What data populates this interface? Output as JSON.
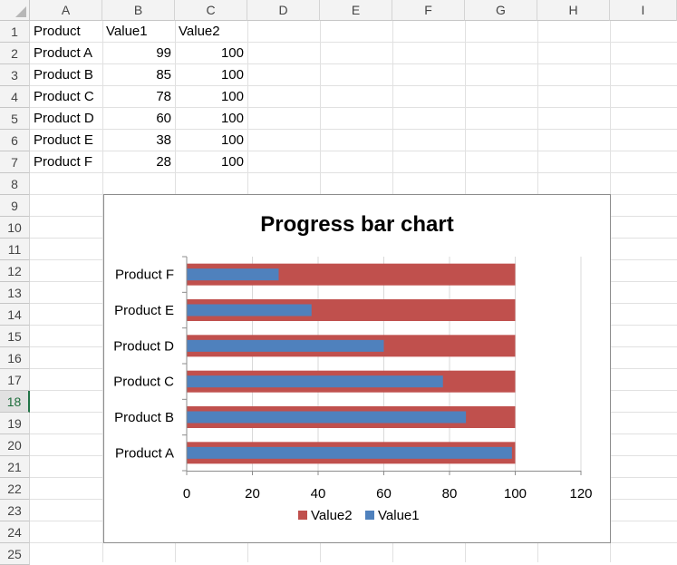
{
  "columns": [
    "A",
    "B",
    "C",
    "D",
    "E",
    "F",
    "G",
    "H",
    "I"
  ],
  "rows": [
    "1",
    "2",
    "3",
    "4",
    "5",
    "6",
    "7",
    "8",
    "9",
    "10",
    "11",
    "12",
    "13",
    "14",
    "15",
    "16",
    "17",
    "18",
    "19",
    "20",
    "21",
    "22",
    "23",
    "24",
    "25"
  ],
  "selected_row": "18",
  "table": {
    "headers": [
      "Product",
      "Value1",
      "Value2"
    ],
    "rows": [
      [
        "Product A",
        99,
        100
      ],
      [
        "Product B",
        85,
        100
      ],
      [
        "Product C",
        78,
        100
      ],
      [
        "Product D",
        60,
        100
      ],
      [
        "Product E",
        38,
        100
      ],
      [
        "Product F",
        28,
        100
      ]
    ]
  },
  "colors": {
    "value1": "#4f81bd",
    "value2": "#c0504d",
    "grid": "#d9d9d9",
    "selected_header": "#217346"
  },
  "chart_data": {
    "type": "bar",
    "orientation": "horizontal",
    "title": "Progress bar chart",
    "categories": [
      "Product A",
      "Product B",
      "Product C",
      "Product D",
      "Product E",
      "Product F"
    ],
    "series": [
      {
        "name": "Value2",
        "values": [
          100,
          100,
          100,
          100,
          100,
          100
        ]
      },
      {
        "name": "Value1",
        "values": [
          99,
          85,
          78,
          60,
          38,
          28
        ]
      }
    ],
    "xlim": [
      0,
      120
    ],
    "xticks": [
      0,
      20,
      40,
      60,
      80,
      100,
      120
    ],
    "grid": true,
    "legend": "bottom",
    "legend_order": [
      "Value2",
      "Value1"
    ]
  }
}
